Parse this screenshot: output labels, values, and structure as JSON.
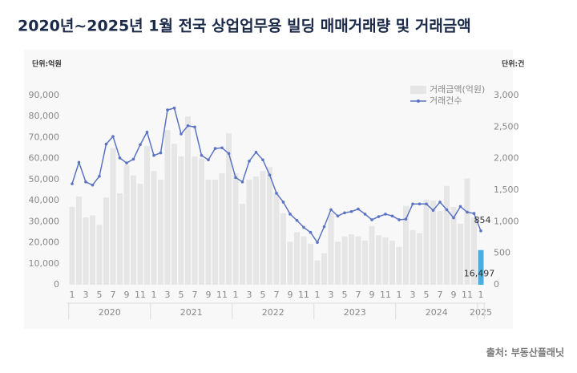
{
  "chart_data": {
    "type": "bar-line",
    "title": "2020년~2025년 1월 전국 상업업무용 빌딩 매매거래량 및 거래금액",
    "y_unit": "단위:억원",
    "y2_unit": "단위:건",
    "source": "출처: 부동산플래닛",
    "categories": [
      "1",
      null,
      "3",
      null,
      "5",
      null,
      "7",
      null,
      "9",
      null,
      "11",
      null,
      "1",
      null,
      "3",
      null,
      "5",
      null,
      "7",
      null,
      "9",
      null,
      "11",
      null,
      "1",
      null,
      "3",
      null,
      "5",
      null,
      "7",
      null,
      "9",
      null,
      "11",
      null,
      "1",
      null,
      "3",
      null,
      "5",
      null,
      "7",
      null,
      "9",
      null,
      "11",
      null,
      "1",
      null,
      "3",
      null,
      "5",
      null,
      "7",
      null,
      "9",
      null,
      "11",
      null,
      "1"
    ],
    "years": [
      "2020",
      "2021",
      "2022",
      "2023",
      "2024",
      "2025"
    ],
    "highlight_color": "#4aaee0",
    "series": [
      {
        "name": "거래금액(억원)",
        "type": "bar",
        "color": "#e6e6e6",
        "values": [
          37000,
          42000,
          32000,
          33000,
          28500,
          41500,
          65000,
          43500,
          57000,
          52000,
          48000,
          66000,
          54000,
          50000,
          73500,
          67000,
          61000,
          80000,
          61000,
          60000,
          50000,
          50000,
          53000,
          72000,
          53000,
          38500,
          50000,
          51500,
          54000,
          56000,
          44000,
          34000,
          20500,
          25000,
          23000,
          19500,
          11500,
          15000,
          34000,
          20500,
          23000,
          24000,
          23000,
          21000,
          28000,
          23500,
          22500,
          21000,
          18000,
          37500,
          26000,
          24500,
          40500,
          40000,
          35000,
          47000,
          37000,
          29000,
          50500,
          32000,
          16497
        ],
        "value_labels": [
          null,
          null,
          null,
          null,
          null,
          null,
          null,
          null,
          null,
          null,
          null,
          null,
          null,
          null,
          null,
          null,
          null,
          null,
          null,
          null,
          null,
          null,
          null,
          null,
          null,
          null,
          null,
          null,
          null,
          null,
          null,
          null,
          null,
          null,
          null,
          null,
          null,
          null,
          null,
          null,
          null,
          null,
          null,
          null,
          null,
          null,
          null,
          null,
          null,
          null,
          null,
          null,
          null,
          null,
          null,
          null,
          null,
          null,
          null,
          null,
          "16,497"
        ]
      },
      {
        "name": "거래건수",
        "type": "line",
        "color": "#5b73c4",
        "axis": "y2",
        "values": [
          1600,
          1940,
          1630,
          1580,
          1720,
          2230,
          2350,
          2010,
          1930,
          1990,
          2220,
          2420,
          2050,
          2090,
          2770,
          2800,
          2390,
          2520,
          2500,
          2050,
          1980,
          2160,
          2170,
          2080,
          1700,
          1630,
          1960,
          2100,
          1980,
          1740,
          1450,
          1310,
          1120,
          1020,
          910,
          830,
          670,
          920,
          1190,
          1090,
          1140,
          1160,
          1200,
          1120,
          1030,
          1080,
          1120,
          1090,
          1030,
          1040,
          1280,
          1280,
          1280,
          1180,
          1310,
          1190,
          1060,
          1240,
          1150,
          1130,
          854
        ]
      }
    ],
    "ylim": [
      0,
      90000
    ],
    "yticks": [
      0,
      {
        "value": 10000,
        "label": "10,000"
      },
      {
        "value": 20000,
        "label": "20,000"
      },
      {
        "value": 30000,
        "label": "30,000"
      },
      {
        "value": 40000,
        "label": "40,000"
      },
      {
        "value": 50000,
        "label": "50,000"
      },
      {
        "value": 60000,
        "label": "60,000"
      },
      {
        "value": 70000,
        "label": "70,000"
      },
      {
        "value": 80000,
        "label": "80,000"
      },
      {
        "value": 90000,
        "label": "90,000"
      }
    ],
    "y2lim": [
      0,
      3000
    ],
    "y2ticks": [
      0,
      500,
      {
        "value": 1000,
        "label": "1,000"
      },
      {
        "value": 1500,
        "label": "1,500"
      },
      {
        "value": 2000,
        "label": "2,000"
      },
      {
        "value": 2500,
        "label": "2,500"
      },
      {
        "value": 3000,
        "label": "3,000"
      }
    ]
  }
}
